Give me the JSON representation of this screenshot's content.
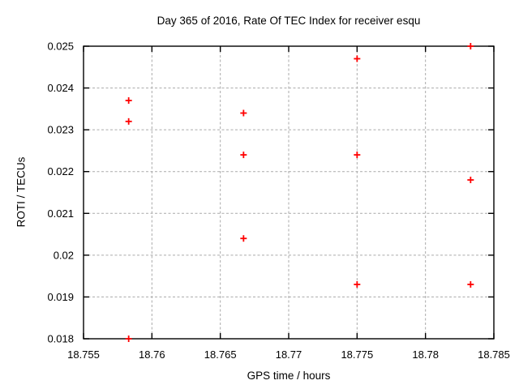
{
  "chart_data": {
    "type": "scatter",
    "title": "Day 365 of 2016, Rate Of TEC Index for receiver esqu",
    "xlabel": "GPS time / hours",
    "ylabel": "ROTI / TECUs",
    "xlim": [
      18.755,
      18.785
    ],
    "ylim": [
      0.018,
      0.025
    ],
    "x_ticks": [
      18.755,
      18.76,
      18.765,
      18.77,
      18.775,
      18.78,
      18.785
    ],
    "x_tick_labels": [
      "18.755",
      "18.76",
      "18.765",
      "18.77",
      "18.775",
      "18.78",
      "18.785"
    ],
    "y_ticks": [
      0.018,
      0.019,
      0.02,
      0.021,
      0.022,
      0.023,
      0.024,
      0.025
    ],
    "y_tick_labels": [
      "0.018",
      "0.019",
      "0.02",
      "0.021",
      "0.022",
      "0.023",
      "0.024",
      "0.025"
    ],
    "grid": true,
    "legend_position": "none",
    "marker": "plus",
    "marker_color": "#ff0000",
    "grid_color": "#aaaaaa",
    "axis_color": "#000000",
    "background_color": "#ffffff",
    "series": [
      {
        "name": "ROTI",
        "points": [
          {
            "x": 18.7583,
            "y": 0.0237
          },
          {
            "x": 18.7583,
            "y": 0.0232
          },
          {
            "x": 18.7583,
            "y": 0.018
          },
          {
            "x": 18.7667,
            "y": 0.0234
          },
          {
            "x": 18.7667,
            "y": 0.0224
          },
          {
            "x": 18.7667,
            "y": 0.0204
          },
          {
            "x": 18.775,
            "y": 0.0247
          },
          {
            "x": 18.775,
            "y": 0.0224
          },
          {
            "x": 18.775,
            "y": 0.0193
          },
          {
            "x": 18.7833,
            "y": 0.025
          },
          {
            "x": 18.7833,
            "y": 0.0218
          },
          {
            "x": 18.7833,
            "y": 0.0193
          }
        ]
      }
    ]
  }
}
